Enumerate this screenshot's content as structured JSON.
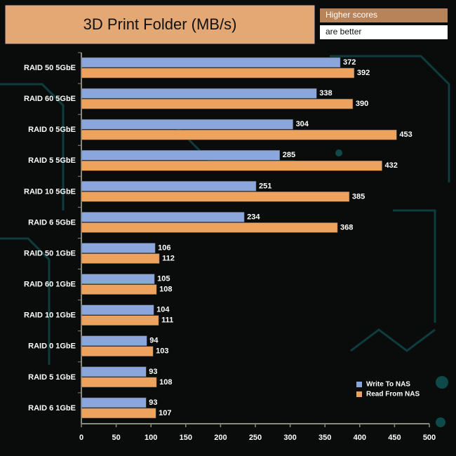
{
  "chart_data": {
    "type": "hbar",
    "title": "3D Print Folder (MB/s)",
    "annotations": [
      "Higher scores",
      "are better"
    ],
    "categories": [
      "RAID 50 5GbE",
      "RAID 60 5GbE",
      "RAID 0 5GbE",
      "RAID 5 5GbE",
      "RAID 10 5GbE",
      "RAID 6 5GbE",
      "RAID 50 1GbE",
      "RAID 60 1GbE",
      "RAID 10 1GbE",
      "RAID 0 1GbE",
      "RAID 5 1GbE",
      "RAID 6 1GbE"
    ],
    "series": [
      {
        "name": "Write To NAS",
        "color": "#8aa6dc",
        "values": [
          372,
          338,
          304,
          285,
          251,
          234,
          106,
          105,
          104,
          94,
          93,
          93
        ]
      },
      {
        "name": "Read From NAS",
        "color": "#eda25e",
        "values": [
          392,
          390,
          453,
          432,
          385,
          368,
          112,
          108,
          111,
          103,
          108,
          107
        ]
      }
    ],
    "xlim": [
      0,
      500
    ],
    "xticks": [
      0,
      50,
      100,
      150,
      200,
      250,
      300,
      350,
      400,
      450,
      500
    ],
    "legend": "lower right"
  }
}
